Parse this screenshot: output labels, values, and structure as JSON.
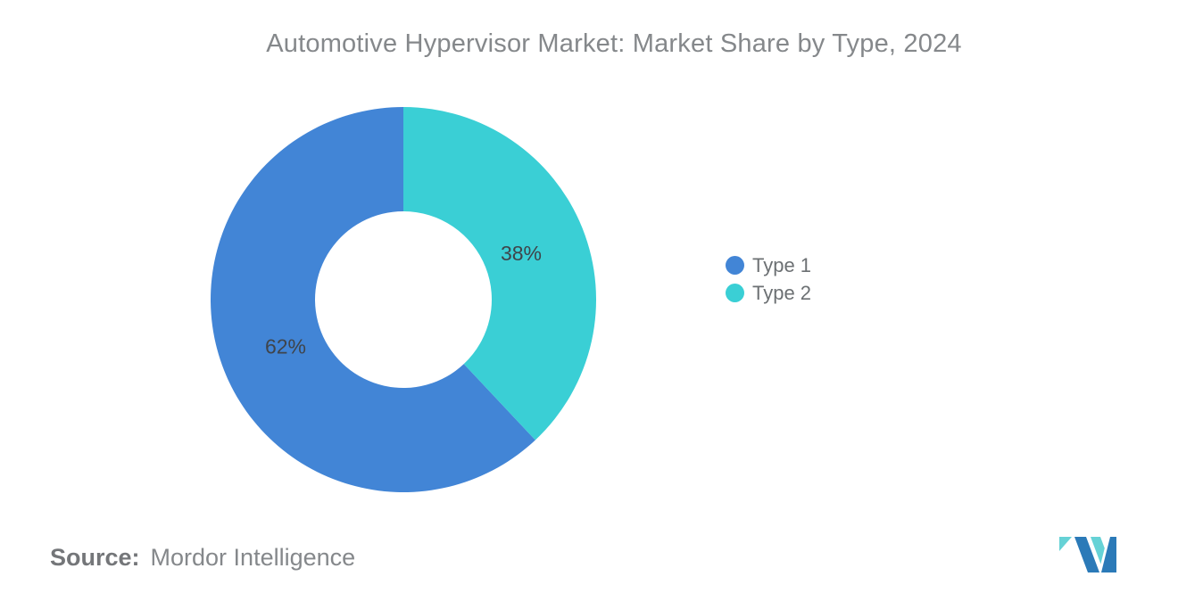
{
  "title": "Automotive Hypervisor Market: Market Share by Type, 2024",
  "chart_data": {
    "type": "pie",
    "subtype": "donut",
    "title": "Automotive Hypervisor Market: Market Share by Type, 2024",
    "categories": [
      "Type 1",
      "Type 2"
    ],
    "values": [
      62,
      38
    ],
    "unit": "%",
    "labels": [
      "62%",
      "38%"
    ],
    "colors": [
      "#4285D6",
      "#3ACFD5"
    ],
    "legend_position": "right",
    "start_position": "12-oclock",
    "inner_radius_ratio": 0.46,
    "label_color": "#3F444A",
    "background": "#FFFFFF"
  },
  "legend": {
    "items": [
      {
        "label": "Type 1",
        "color": "#4285D6"
      },
      {
        "label": "Type 2",
        "color": "#3ACFD5"
      }
    ]
  },
  "source": {
    "label": "Source:",
    "value": "Mordor Intelligence"
  },
  "logo": {
    "name": "Mordor Intelligence logo mark",
    "colors": {
      "blue": "#2B7AB8",
      "teal": "#66D2D6"
    }
  }
}
